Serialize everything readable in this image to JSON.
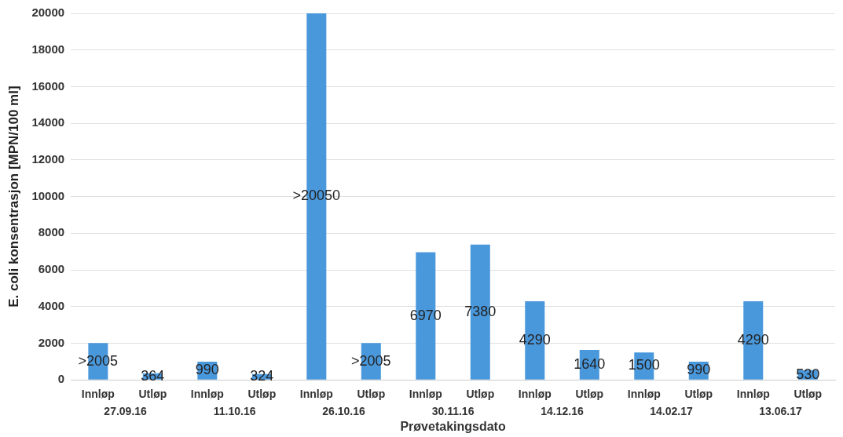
{
  "chart_data": {
    "type": "bar",
    "xlabel": "Prøvetakingsdato",
    "ylabel": "E. coli konsentrasjon [MPN/100 ml]",
    "categories": [
      "Innløp",
      "Utløp",
      "Innløp",
      "Utløp",
      "Innløp",
      "Utløp",
      "Innløp",
      "Utløp",
      "Innløp",
      "Utløp",
      "Innløp",
      "Utløp",
      "Innløp",
      "Utløp"
    ],
    "values": [
      2005,
      364,
      990,
      324,
      20000,
      2005,
      6970,
      7380,
      4290,
      1640,
      1500,
      990,
      4290,
      530
    ],
    "value_labels": [
      ">2005",
      "364",
      "990",
      "324",
      ">20050",
      ">2005",
      "6970",
      "7380",
      "4290",
      "1640",
      "1500",
      "990",
      "4290",
      "530"
    ],
    "annotations": [
      "27.09.16",
      "11.10.16",
      "26.10.16",
      "30.11.16",
      "14.12.16",
      "14.02.17",
      "13.06.17"
    ],
    "color": "#4a98dc",
    "ylim": [
      0,
      20000
    ],
    "yticks": [
      0,
      2000,
      4000,
      6000,
      8000,
      10000,
      12000,
      14000,
      16000,
      18000,
      20000
    ],
    "grid": "y",
    "legend": false
  }
}
